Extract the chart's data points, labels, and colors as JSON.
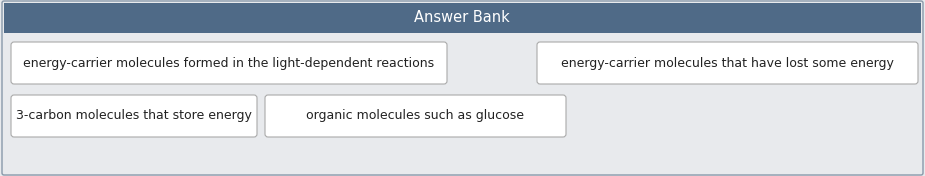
{
  "title": "Answer Bank",
  "title_bg_color": "#4f6a87",
  "title_text_color": "#ffffff",
  "body_bg_color": "#e8eaed",
  "outer_border_color": "#8899aa",
  "box_border_color": "#aaaaaa",
  "box_bg_color": "#ffffff",
  "items": [
    "energy-carrier molecules formed in the light-dependent reactions",
    "energy-carrier molecules that have lost some energy",
    "3-carbon molecules that store energy",
    "organic molecules such as glucose"
  ],
  "fig_width": 9.25,
  "fig_height": 1.76,
  "font_size": 9.0,
  "title_font_size": 10.5
}
